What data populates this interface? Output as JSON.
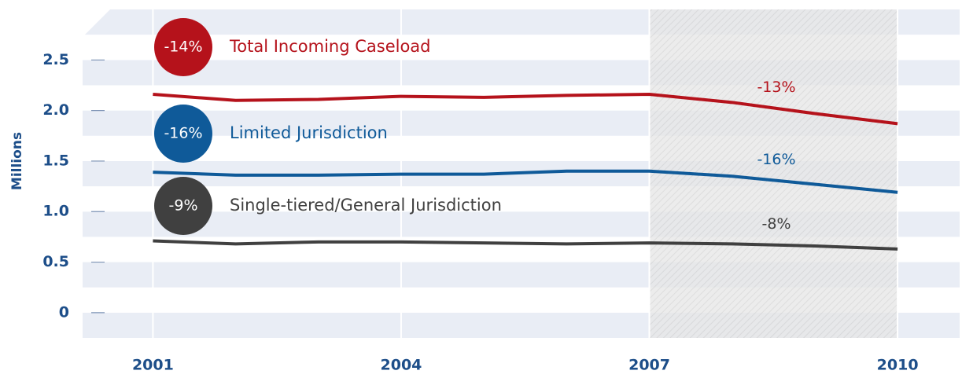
{
  "chart_data": {
    "type": "line",
    "y_label": "Millions",
    "x": [
      2001,
      2002,
      2003,
      2004,
      2005,
      2006,
      2007,
      2008,
      2009,
      2010
    ],
    "xlim": [
      2000.15,
      2010.75
    ],
    "xticks": [
      2001,
      2004,
      2007,
      2010
    ],
    "ylim": [
      -0.25,
      3.0
    ],
    "yticks": [
      0,
      0.5,
      {
        "value": 1,
        "label": "1.0"
      },
      1.5,
      {
        "value": 2,
        "label": "2.0"
      },
      2.5
    ],
    "shade": [
      2007,
      2010
    ],
    "series": [
      {
        "name": "Total Incoming Caseload",
        "badge": "-14%",
        "note": "-13%",
        "color": "#b5121b",
        "values": [
          2.16,
          2.1,
          2.11,
          2.14,
          2.13,
          2.15,
          2.16,
          2.08,
          1.97,
          1.87
        ]
      },
      {
        "name": "Limited Jurisdiction",
        "badge": "-16%",
        "note": "-16%",
        "color": "#0f5a99",
        "values": [
          1.39,
          1.36,
          1.36,
          1.37,
          1.37,
          1.4,
          1.4,
          1.35,
          1.27,
          1.19
        ]
      },
      {
        "name": "Single-tiered/General Jurisdiction",
        "badge": "-9%",
        "note": "-8%",
        "color": "#404040",
        "values": [
          0.71,
          0.68,
          0.7,
          0.7,
          0.69,
          0.68,
          0.69,
          0.68,
          0.66,
          0.63
        ]
      }
    ]
  }
}
